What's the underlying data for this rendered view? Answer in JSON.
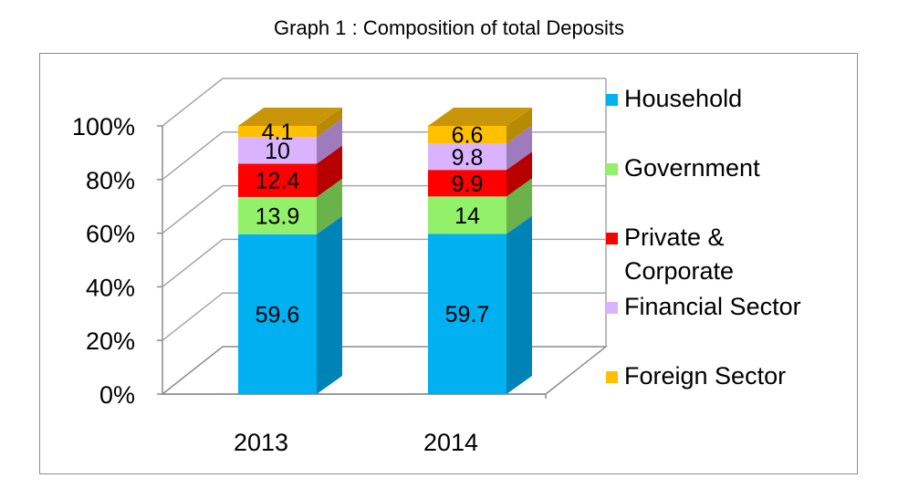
{
  "title": "Graph 1 : Composition of total Deposits",
  "chart_data": {
    "type": "bar",
    "stacked": true,
    "percent_stacked": true,
    "three_d": true,
    "title": "Graph 1 : Composition of total Deposits",
    "categories": [
      "2013",
      "2014"
    ],
    "y_ticks": [
      "0%",
      "20%",
      "40%",
      "60%",
      "80%",
      "100%"
    ],
    "ylim": [
      0,
      100
    ],
    "grid": true,
    "legend_position": "right",
    "series": [
      {
        "name": "Household",
        "values": [
          59.6,
          59.7
        ],
        "labels": [
          "59.6",
          "59.7"
        ],
        "color": "#00b0f0",
        "side": "#0084b8",
        "top": "#33c0f3"
      },
      {
        "name": "Government",
        "values": [
          13.9,
          14
        ],
        "labels": [
          "13.9",
          "14"
        ],
        "color": "#92f06a",
        "side": "#6ab24a",
        "top": "#a9f38a"
      },
      {
        "name": "Private & Corporate",
        "lines": [
          "Private &",
          "Corporate"
        ],
        "values": [
          12.4,
          9.9
        ],
        "labels": [
          "12.4",
          "9.9"
        ],
        "color": "#ff0000",
        "side": "#b80000",
        "top": "#ff4040"
      },
      {
        "name": "Financial Sector",
        "values": [
          10,
          9.8
        ],
        "labels": [
          "10",
          "9.8"
        ],
        "color": "#dab3ff",
        "side": "#9d7bbd",
        "top": "#e6c8ff"
      },
      {
        "name": "Foreign Sector",
        "values": [
          4.1,
          6.6
        ],
        "labels": [
          "4.1",
          "6.6"
        ],
        "color": "#ffc000",
        "side": "#b88a00",
        "top": "#c9960a"
      }
    ]
  }
}
